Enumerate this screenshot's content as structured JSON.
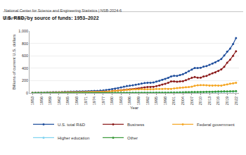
{
  "chart_data": {
    "type": "line",
    "title": "U.S. R&D, by source of funds: 1953–2022",
    "subtitle": "Figure RD-2",
    "annotations": [
      "National Center for Science and Engineering Statistics | NSB-2024-6"
    ],
    "x_label": "Year",
    "y_label": "Billions of current U.S. dollars",
    "x": [
      1953,
      1954,
      1955,
      1956,
      1957,
      1958,
      1959,
      1960,
      1961,
      1962,
      1963,
      1964,
      1965,
      1966,
      1967,
      1968,
      1969,
      1970,
      1971,
      1972,
      1973,
      1974,
      1975,
      1976,
      1977,
      1978,
      1979,
      1980,
      1981,
      1982,
      1983,
      1984,
      1985,
      1986,
      1987,
      1988,
      1989,
      1990,
      1991,
      1992,
      1993,
      1994,
      1995,
      1996,
      1997,
      1998,
      1999,
      2000,
      2001,
      2002,
      2003,
      2004,
      2005,
      2006,
      2007,
      2008,
      2009,
      2010,
      2011,
      2012,
      2013,
      2014,
      2015,
      2016,
      2017,
      2018,
      2019,
      2020,
      2021,
      2022
    ],
    "xlim": [
      1952,
      2023
    ],
    "xticks": [
      1953,
      1956,
      1959,
      1962,
      1965,
      1968,
      1971,
      1974,
      1977,
      1980,
      1983,
      1986,
      1989,
      1992,
      1995,
      1998,
      2001,
      2004,
      2007,
      2010,
      2013,
      2016,
      2019,
      2022
    ],
    "ylim": [
      0,
      1000
    ],
    "yticks": [
      0,
      200,
      400,
      600,
      800,
      {
        "value": 1000,
        "label": "1,000"
      }
    ],
    "grid": true,
    "legend": "bottom",
    "marker": "circle",
    "line_style": "solid",
    "series": [
      {
        "name": "U.S. total R&D",
        "color": "#1f4e9c",
        "values": [
          5.2,
          5.7,
          6.3,
          8.5,
          9.9,
          10.9,
          12.4,
          13.5,
          14.3,
          15.4,
          17.1,
          18.9,
          20.0,
          21.8,
          23.1,
          24.6,
          25.6,
          26.1,
          26.7,
          28.5,
          30.7,
          33.0,
          35.3,
          39.0,
          42.8,
          48.1,
          54.9,
          63.2,
          72.3,
          80.7,
          89.9,
          102.2,
          114.7,
          120.2,
          126.4,
          133.9,
          141.9,
          152.0,
          160.9,
          165.4,
          165.7,
          169.2,
          183.6,
          197.3,
          212.7,
          226.9,
          245.5,
          267.9,
          277.4,
          276.5,
          289.7,
          302.6,
          325.9,
          351.2,
          377.9,
          404.8,
          402.3,
          406.6,
          426.2,
          433.6,
          454.0,
          475.4,
          495.1,
          521.3,
          548.6,
          606.0,
          667.3,
          717.2,
          789.1,
          885.6
        ]
      },
      {
        "name": "Business",
        "color": "#8b1a1a",
        "values": [
          2.2,
          2.3,
          2.5,
          3.1,
          3.4,
          3.6,
          3.9,
          4.5,
          4.7,
          5.1,
          5.5,
          5.9,
          6.5,
          7.3,
          7.9,
          8.6,
          9.3,
          10.4,
          10.8,
          11.7,
          13.3,
          14.9,
          15.8,
          17.7,
          19.7,
          22.5,
          26.1,
          30.9,
          35.9,
          40.7,
          45.3,
          52.2,
          57.9,
          61.0,
          62.6,
          67.0,
          72.3,
          83.2,
          92.3,
          96.2,
          96.5,
          99.2,
          110.9,
          123.4,
          136.2,
          147.8,
          164.7,
          186.1,
          188.4,
          180.7,
          186.2,
          191.3,
          207.8,
          227.1,
          246.7,
          258.0,
          247.4,
          248.1,
          266.4,
          275.7,
          297.2,
          318.4,
          333.2,
          355.8,
          381.1,
          422.5,
          489.7,
          537.1,
          600.2,
          673.3
        ]
      },
      {
        "name": "Federal government",
        "color": "#f5a623",
        "values": [
          2.8,
          3.1,
          3.5,
          5.1,
          6.2,
          7.0,
          8.2,
          8.7,
          9.3,
          10.0,
          11.3,
          12.5,
          13.0,
          13.9,
          14.4,
          15.0,
          15.1,
          14.9,
          15.0,
          15.8,
          16.4,
          16.9,
          18.1,
          19.7,
          21.4,
          23.6,
          26.0,
          29.5,
          33.7,
          37.1,
          41.5,
          46.5,
          52.6,
          54.6,
          58.6,
          60.1,
          60.5,
          61.6,
          60.7,
          60.9,
          60.5,
          60.8,
          64.6,
          65.1,
          66.2,
          67.3,
          66.6,
          66.4,
          73.6,
          78.4,
          84.0,
          89.3,
          94.3,
          98.0,
          101.0,
          117.6,
          125.4,
          126.6,
          127.0,
          123.8,
          120.1,
          118.3,
          120.9,
          120.0,
          120.5,
          129.6,
          138.9,
          149.8,
          157.3,
          165.9
        ]
      },
      {
        "name": "Higher education",
        "color": "#7fd3f0",
        "values": [
          0.1,
          0.1,
          0.1,
          0.1,
          0.1,
          0.2,
          0.2,
          0.2,
          0.2,
          0.2,
          0.3,
          0.3,
          0.3,
          0.4,
          0.4,
          0.4,
          0.5,
          0.5,
          0.5,
          0.6,
          0.6,
          0.7,
          0.8,
          0.9,
          1.0,
          1.1,
          1.2,
          1.3,
          1.6,
          1.9,
          2.2,
          2.4,
          2.6,
          2.9,
          3.3,
          3.6,
          3.9,
          4.1,
          4.5,
          4.7,
          4.9,
          5.1,
          5.4,
          5.7,
          6.1,
          6.6,
          7.1,
          7.7,
          8.6,
          9.1,
          9.6,
          10.1,
          10.6,
          11.2,
          11.8,
          12.6,
          13.4,
          14.0,
          14.9,
          15.3,
          15.8,
          16.5,
          17.2,
          18.3,
          19.2,
          20.3,
          21.5,
          22.1,
          23.3,
          25.4
        ]
      },
      {
        "name": "Other",
        "color": "#3a9a3a",
        "values": [
          0.1,
          0.2,
          0.2,
          0.2,
          0.2,
          0.2,
          0.3,
          0.3,
          0.3,
          0.3,
          0.4,
          0.4,
          0.4,
          0.4,
          0.5,
          0.5,
          0.5,
          0.6,
          0.6,
          0.6,
          0.7,
          0.7,
          0.8,
          0.9,
          1.0,
          1.1,
          1.2,
          1.5,
          1.6,
          1.8,
          2.0,
          2.2,
          2.4,
          2.6,
          2.8,
          3.0,
          3.1,
          3.2,
          3.4,
          3.6,
          3.8,
          4.1,
          4.4,
          4.9,
          5.5,
          6.1,
          6.8,
          7.6,
          8.8,
          9.3,
          10.0,
          11.5,
          13.1,
          15.0,
          18.3,
          16.5,
          16.1,
          17.7,
          18.0,
          18.9,
          19.5,
          20.6,
          23.5,
          25.2,
          26.6,
          27.2,
          26.4,
          27.7,
          28.5,
          29.9
        ]
      }
    ]
  }
}
